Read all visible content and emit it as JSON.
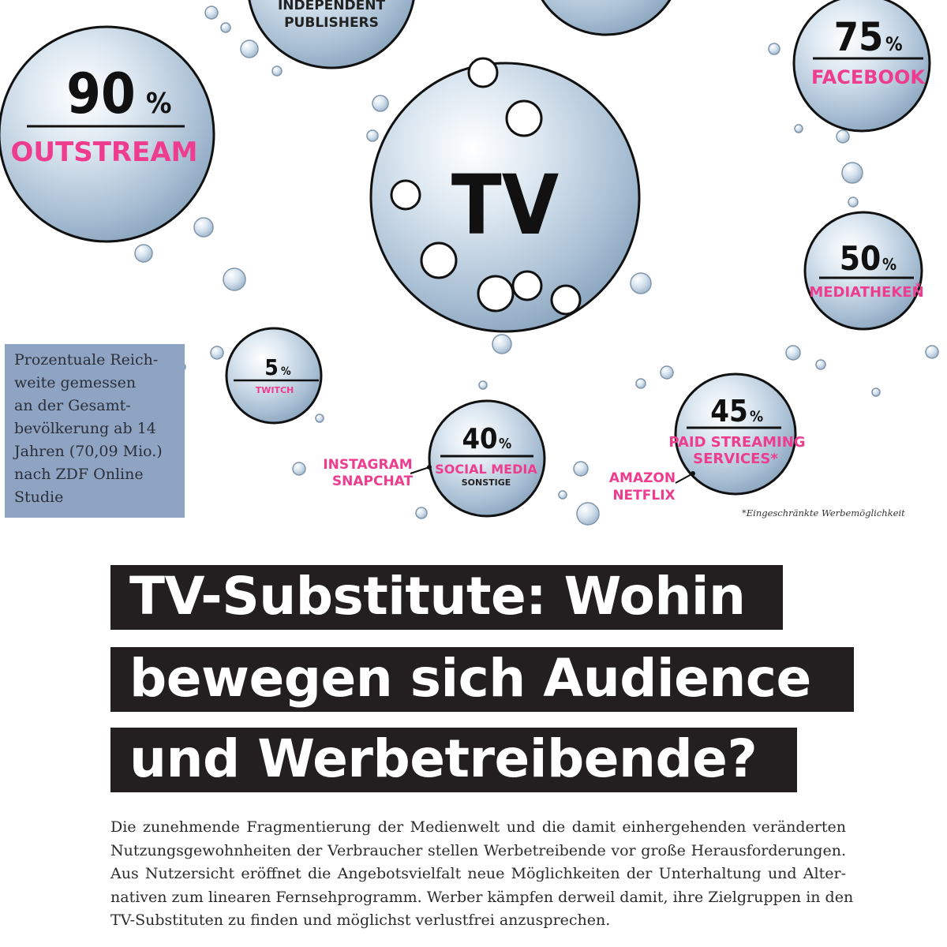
{
  "infographic": {
    "center_label": "TV",
    "bubbles": {
      "outstream": {
        "value": "90",
        "unit": "%",
        "label": "OUTSTREAM"
      },
      "independent": {
        "label_line1": "INDEPENDENT",
        "label_line2": "PUBLISHERS"
      },
      "facebook": {
        "value": "75",
        "unit": "%",
        "label": "FACEBOOK"
      },
      "mediatheken": {
        "value": "50",
        "unit": "%",
        "label": "MEDIATHEKEN",
        "mark": "*"
      },
      "paid": {
        "value": "45",
        "unit": "%",
        "label_line1": "PAID STREAMING",
        "label_line2": "SERVICES*"
      },
      "social": {
        "value": "40",
        "unit": "%",
        "label": "SOCIAL MEDIA",
        "sub": "SONSTIGE"
      },
      "twitch": {
        "value": "5",
        "unit": "%",
        "label": "TWITCH"
      }
    },
    "callouts": {
      "instagram": "INSTAGRAM",
      "snapchat": "SNAPCHAT",
      "amazon": "AMAZON",
      "netflix": "NETFLIX"
    },
    "footnote": "*Eingeschränkte Werbemöglichkeit",
    "note_lines": [
      "Prozentuale Reich-",
      "weite gemessen",
      "an der Gesamt-",
      "bevölkerung ab 14",
      "Jahren (70,09 Mio.)",
      "nach ZDF Online",
      "Studie"
    ]
  },
  "headline": {
    "line1": "TV-Substitute: Wohin",
    "line2": "bewegen sich Audience",
    "line3": "und Werbetreibende?"
  },
  "body_lines": [
    "Die zunehmende Fragmentierung der Medienwelt und die damit einhergehenden veränderten",
    "Nutzungsgewohnheiten der Verbraucher stellen Werbetreibende vor große Herausforderungen.",
    "Aus Nutzersicht eröffnet die Angebotsvielfalt neue Möglichkeiten der Unterhaltung und Alter-",
    "nativen zum linearen Fernsehprogramm. Werber kämpfen derweil damit, ihre Zielgruppen in den",
    "TV-Substituten zu finden und möglichst verlustfrei anzusprechen."
  ],
  "colors": {
    "accent_pink": "#ee3c8f",
    "bubble_blue": "#b9cde0",
    "headline_bg": "#231f20",
    "note_bg": "#8fa3c2"
  }
}
